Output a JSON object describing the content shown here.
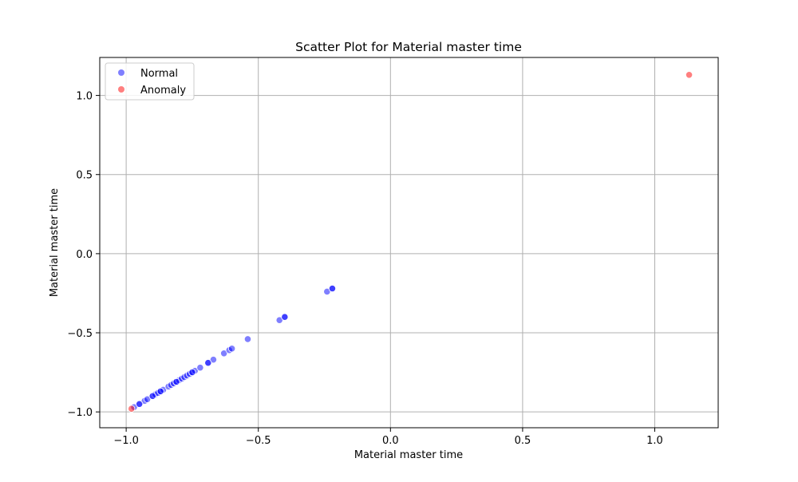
{
  "chart_data": {
    "type": "scatter",
    "title": "Scatter Plot for Material master time",
    "xlabel": "Material master time",
    "ylabel": "Material master time",
    "xlim": [
      -1.1,
      1.24
    ],
    "ylim": [
      -1.1,
      1.24
    ],
    "xticks": [
      -1.0,
      -0.5,
      0.0,
      0.5,
      1.0
    ],
    "yticks": [
      -1.0,
      -0.5,
      0.0,
      0.5,
      1.0
    ],
    "xtick_labels": [
      "−1.0",
      "−0.5",
      "0.0",
      "0.5",
      "1.0"
    ],
    "ytick_labels": [
      "−1.0",
      "−0.5",
      "0.0",
      "0.5",
      "1.0"
    ],
    "grid": true,
    "legend_position": "top-left",
    "series": [
      {
        "name": "Normal",
        "color": "#0000ff",
        "points": [
          [
            -0.97,
            -0.97
          ],
          [
            -0.95,
            -0.95
          ],
          [
            -0.93,
            -0.93
          ],
          [
            -0.92,
            -0.92
          ],
          [
            -0.9,
            -0.9
          ],
          [
            -0.89,
            -0.89
          ],
          [
            -0.88,
            -0.88
          ],
          [
            -0.87,
            -0.87
          ],
          [
            -0.86,
            -0.86
          ],
          [
            -0.84,
            -0.84
          ],
          [
            -0.83,
            -0.83
          ],
          [
            -0.82,
            -0.82
          ],
          [
            -0.81,
            -0.81
          ],
          [
            -0.8,
            -0.8
          ],
          [
            -0.79,
            -0.79
          ],
          [
            -0.78,
            -0.78
          ],
          [
            -0.77,
            -0.77
          ],
          [
            -0.76,
            -0.76
          ],
          [
            -0.75,
            -0.75
          ],
          [
            -0.74,
            -0.74
          ],
          [
            -0.72,
            -0.72
          ],
          [
            -0.69,
            -0.69
          ],
          [
            -0.67,
            -0.67
          ],
          [
            -0.63,
            -0.63
          ],
          [
            -0.61,
            -0.61
          ],
          [
            -0.6,
            -0.6
          ],
          [
            -0.54,
            -0.54
          ],
          [
            -0.42,
            -0.42
          ],
          [
            -0.4,
            -0.4
          ],
          [
            -0.24,
            -0.24
          ],
          [
            -0.22,
            -0.22
          ],
          [
            -0.95,
            -0.95
          ],
          [
            -0.9,
            -0.9
          ],
          [
            -0.87,
            -0.87
          ],
          [
            -0.81,
            -0.81
          ],
          [
            -0.75,
            -0.75
          ],
          [
            -0.69,
            -0.69
          ],
          [
            -0.4,
            -0.4
          ],
          [
            -0.22,
            -0.22
          ]
        ]
      },
      {
        "name": "Anomaly",
        "color": "#ff0000",
        "points": [
          [
            -0.98,
            -0.98
          ],
          [
            1.13,
            1.13
          ]
        ]
      }
    ]
  }
}
